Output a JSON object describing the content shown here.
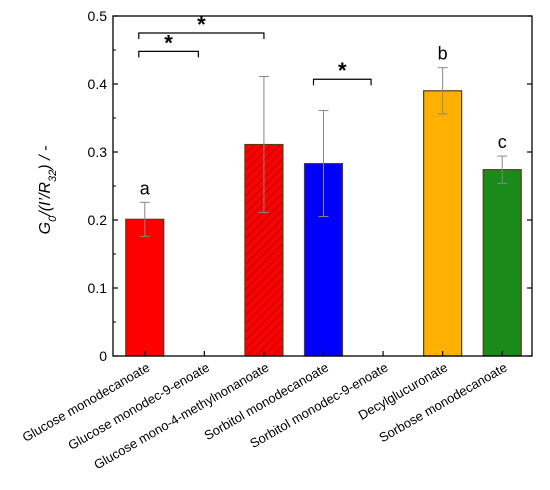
{
  "chart_data": {
    "type": "bar",
    "categories": [
      "Glucose monodecanoate",
      "Glucose monodec-9-enoate",
      "Glucose mono-4-methylnonanoate",
      "Sorbitol monodecanoate",
      "Sorbitol monodec-9-enoate",
      "Decylglucuronate",
      "Sorbose monodecanoate"
    ],
    "values": [
      0.201,
      0,
      0.311,
      0.283,
      0,
      0.39,
      0.274
    ],
    "errors": [
      0.025,
      0,
      0.1,
      0.078,
      0,
      0.034,
      0.02
    ],
    "colors": [
      "#ff0000",
      null,
      "#ff0000",
      "#0000ff",
      null,
      "#ffb000",
      "#1a8a1a"
    ],
    "hatched": [
      false,
      false,
      true,
      false,
      false,
      false,
      false
    ],
    "ylabel": "G0/(I’/R32) / -",
    "ylim": [
      0,
      0.5
    ],
    "yticks": [
      "0",
      "0.1",
      "0.2",
      "0.3",
      "0.4",
      "0.5"
    ],
    "letters": [
      {
        "category": 0,
        "text": "a"
      },
      {
        "category": 5,
        "text": "b"
      },
      {
        "category": 6,
        "text": "c"
      }
    ],
    "significance": [
      {
        "from": 0,
        "to": 2,
        "y": 0.475,
        "text": "*"
      },
      {
        "from": 0,
        "to": 1,
        "y": 0.448,
        "text": "*"
      },
      {
        "from": 3,
        "to": 4,
        "y": 0.407,
        "text": "*"
      }
    ]
  }
}
